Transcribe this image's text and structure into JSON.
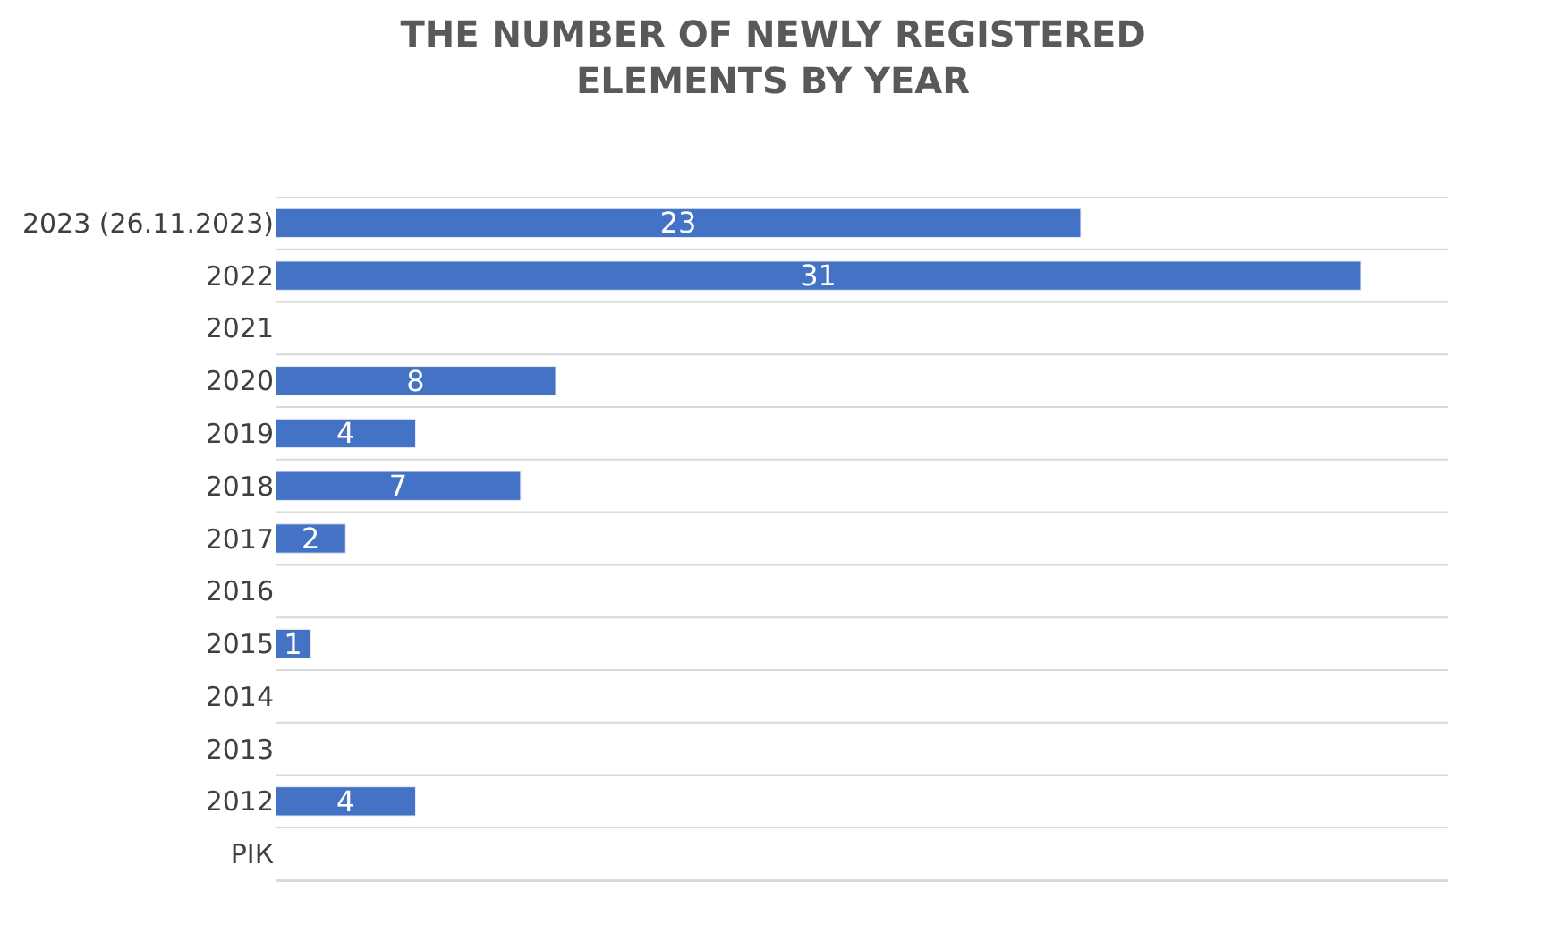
{
  "chart_data": {
    "type": "bar",
    "orientation": "horizontal",
    "title": "THE NUMBER OF NEWLY REGISTERED ELEMENTS BY YEAR",
    "categories": [
      "2023 (26.11.2023)",
      "2022",
      "2021",
      "2020",
      "2019",
      "2018",
      "2017",
      "2016",
      "2015",
      "2014",
      "2013",
      "2012",
      "РІК"
    ],
    "values": [
      23,
      31,
      null,
      8,
      4,
      7,
      2,
      null,
      1,
      null,
      null,
      4,
      null
    ],
    "color": "#4472c4",
    "data_labels": true,
    "grid": "y"
  }
}
